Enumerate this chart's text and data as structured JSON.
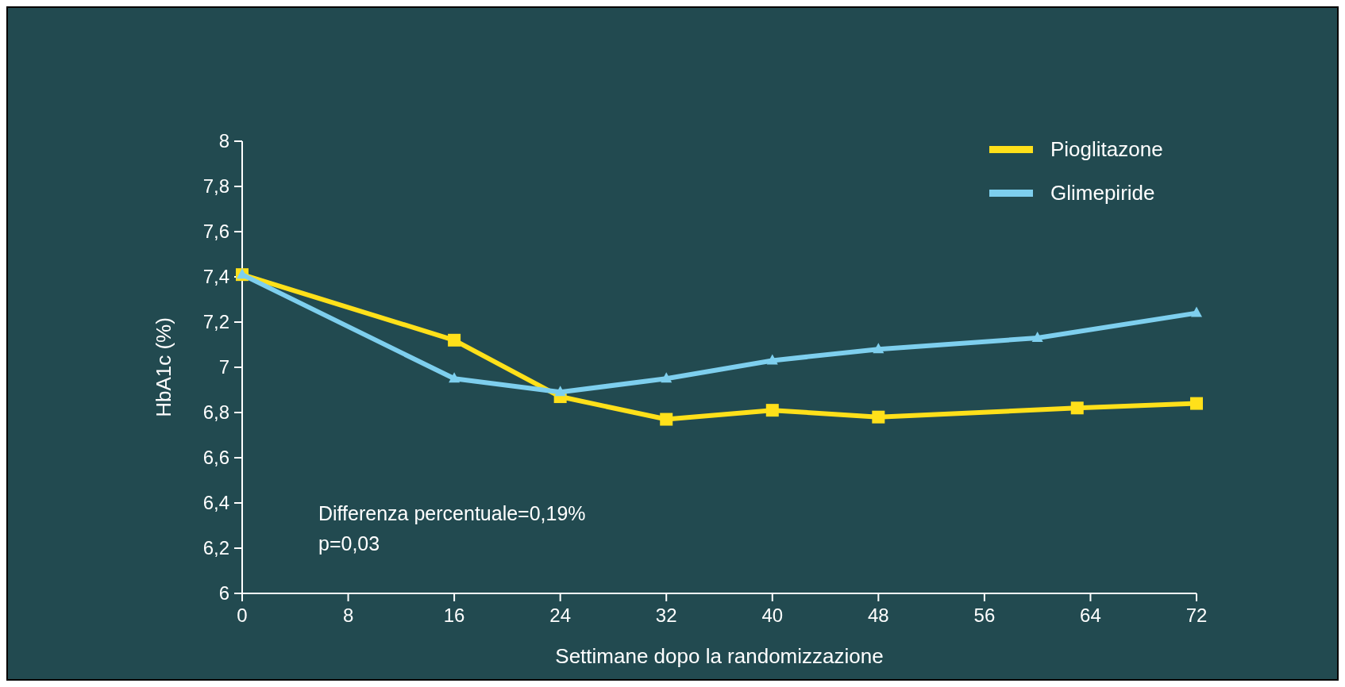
{
  "chart_data": {
    "type": "line",
    "xlabel": "Settimane dopo la randomizzazione",
    "ylabel": "HbA1c (%)",
    "xlim": [
      0,
      72
    ],
    "xticks": [
      0,
      8,
      16,
      24,
      32,
      40,
      48,
      56,
      64,
      72
    ],
    "ylim": [
      6,
      8
    ],
    "yticks": [
      {
        "value": 6,
        "label": "6"
      },
      {
        "value": 6.2,
        "label": "6,2"
      },
      {
        "value": 6.4,
        "label": "6,4"
      },
      {
        "value": 6.6,
        "label": "6,6"
      },
      {
        "value": 6.8,
        "label": "6,8"
      },
      {
        "value": 7,
        "label": "7"
      },
      {
        "value": 7.2,
        "label": "7,2"
      },
      {
        "value": 7.4,
        "label": "7,4"
      },
      {
        "value": 7.6,
        "label": "7,6"
      },
      {
        "value": 7.8,
        "label": "7,8"
      },
      {
        "value": 8,
        "label": "8"
      }
    ],
    "series": [
      {
        "name": "Pioglitazone",
        "color": "#ffe01a",
        "marker": "square",
        "x": [
          0,
          16,
          24,
          32,
          40,
          48,
          63,
          72
        ],
        "values": [
          7.41,
          7.12,
          6.87,
          6.77,
          6.81,
          6.78,
          6.82,
          6.84
        ]
      },
      {
        "name": "Glimepiride",
        "color": "#7ecfee",
        "marker": "triangle",
        "x": [
          0,
          16,
          24,
          32,
          40,
          48,
          60,
          72
        ],
        "values": [
          7.41,
          6.95,
          6.89,
          6.95,
          7.03,
          7.08,
          7.13,
          7.24
        ]
      }
    ],
    "annotations": [
      "Differenza percentuale=0,19%",
      "p=0,03"
    ],
    "legend": "top right",
    "grid": false
  }
}
